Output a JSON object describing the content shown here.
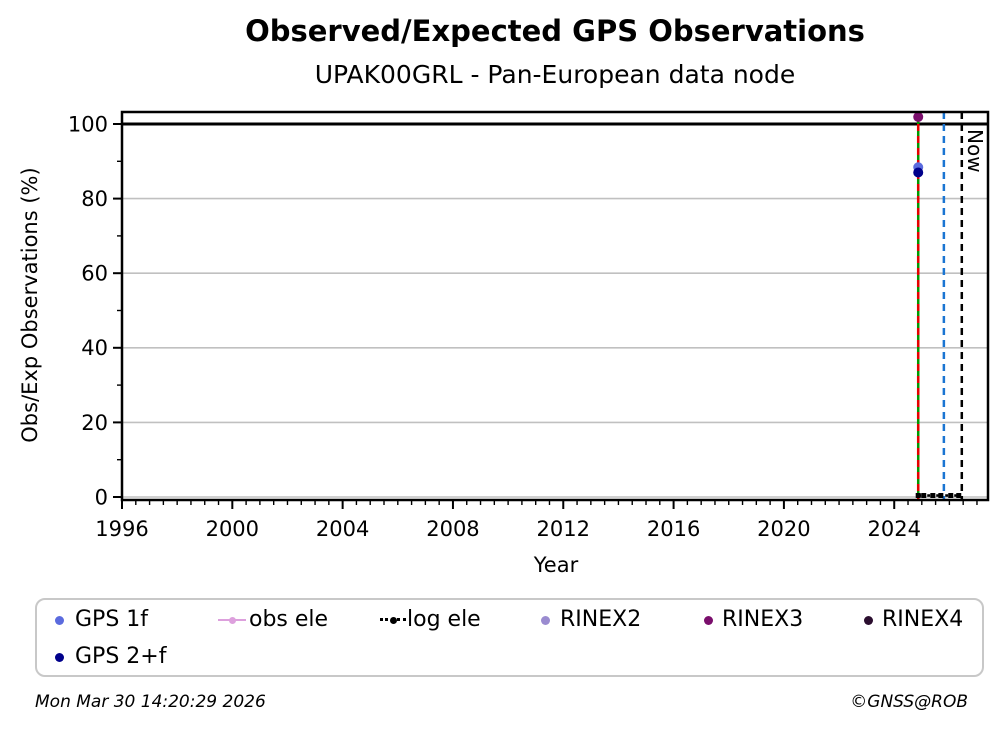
{
  "header": {
    "title": "Observed/Expected GPS Observations",
    "subtitle": "UPAK00GRL - Pan-European data node"
  },
  "chart_data": {
    "type": "scatter",
    "title": "Observed/Expected GPS Observations",
    "subtitle": "UPAK00GRL - Pan-European data node",
    "xlabel": "Year",
    "ylabel": "Obs/Exp Observations (%)",
    "xlim": [
      1996,
      2027.4
    ],
    "ylim": [
      -0.9,
      103.2
    ],
    "xticks": [
      1996,
      2000,
      2004,
      2008,
      2012,
      2016,
      2020,
      2024
    ],
    "yticks": [
      0,
      20,
      40,
      60,
      80,
      100
    ],
    "x_minor_step": 0.5,
    "y_minor_step": 10,
    "grid": "horizontal-only",
    "grid_color": "#c0c0c0",
    "reference_line": {
      "y": 100,
      "color": "#000000"
    },
    "series": [
      {
        "name": "GPS 1f",
        "color": "#5b6bde",
        "marker": "circle",
        "points": [
          {
            "x": 2024.87,
            "y": 88.4
          }
        ]
      },
      {
        "name": "GPS 2+f",
        "color": "#00008b",
        "marker": "circle",
        "points": [
          {
            "x": 2024.87,
            "y": 87.0
          }
        ]
      },
      {
        "name": "obs ele",
        "color": "#dda0dd",
        "marker": "square",
        "points": [
          {
            "x": 2024.87,
            "y": 0.4
          }
        ]
      },
      {
        "name": "log ele",
        "color": "#000000",
        "marker": "square",
        "line": "dotted",
        "points": [
          {
            "x": 2024.87,
            "y": 0.4
          },
          {
            "x": 2025.07,
            "y": 0.4
          },
          {
            "x": 2025.4,
            "y": 0.4
          },
          {
            "x": 2025.69,
            "y": 0.4
          },
          {
            "x": 2026.05,
            "y": 0.4
          },
          {
            "x": 2026.34,
            "y": 0.4
          }
        ]
      },
      {
        "name": "RINEX2",
        "color": "#9a8bd0",
        "marker": "circle",
        "points": []
      },
      {
        "name": "RINEX3",
        "color": "#7a0e6c",
        "marker": "circle",
        "points": [
          {
            "x": 2024.87,
            "y": 101.9
          }
        ]
      },
      {
        "name": "RINEX4",
        "color": "#2b0e2f",
        "marker": "circle",
        "points": []
      }
    ],
    "vlines": [
      {
        "x": 2024.87,
        "color": "#009900",
        "style": "solid",
        "label": ""
      },
      {
        "x": 2024.87,
        "color": "#e60000",
        "style": "dashed",
        "label": ""
      },
      {
        "x": 2025.8,
        "color": "#1a75d2",
        "style": "dashed",
        "label": ""
      },
      {
        "x": 2026.45,
        "color": "#000000",
        "style": "dashed",
        "label": "Now"
      }
    ],
    "now_label": "Now"
  },
  "legend": {
    "items": [
      {
        "label": "GPS 1f",
        "marker": "dot",
        "color": "#5b6bde"
      },
      {
        "label": "obs ele",
        "marker": "line-dot",
        "color": "#dda0dd"
      },
      {
        "label": "log ele",
        "marker": "dotted-dot",
        "color": "#000000"
      },
      {
        "label": "RINEX2",
        "marker": "dot",
        "color": "#9a8bd0"
      },
      {
        "label": "RINEX3",
        "marker": "dot",
        "color": "#7a0e6c"
      },
      {
        "label": "RINEX4",
        "marker": "dot",
        "color": "#2b0e2f"
      },
      {
        "label": "GPS 2+f",
        "marker": "dot",
        "color": "#00008b"
      }
    ]
  },
  "footer": {
    "timestamp": "Mon Mar 30 14:20:29 2026",
    "copyright": "©GNSS@ROB"
  }
}
